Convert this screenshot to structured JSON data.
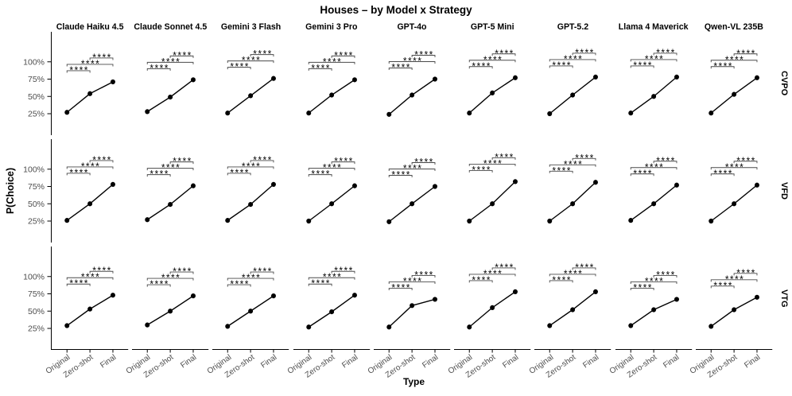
{
  "chart_data": {
    "type": "line",
    "title": "Houses – by Model x Strategy",
    "xlabel": "Type",
    "ylabel": "P(Choice)",
    "x_categories": [
      "Original",
      "Zero-shot",
      "Final"
    ],
    "y_tick_labels": [
      "25%",
      "50%",
      "75%",
      "100%"
    ],
    "y_tick_values": [
      25,
      50,
      75,
      100
    ],
    "ylim": [
      0,
      140
    ],
    "grid": "off",
    "legend": "none",
    "facet_columns": [
      "Claude Haiku 4.5",
      "Claude Sonnet 4.5",
      "Gemini 3 Flash",
      "Gemini 3 Pro",
      "GPT-4o",
      "GPT-5 Mini",
      "GPT-5.2",
      "Llama 4 Maverick",
      "Qwen-VL 235B"
    ],
    "facet_rows": [
      "CVPO",
      "VFD",
      "VTG"
    ],
    "significance": {
      "label": "****",
      "pairs": [
        [
          0,
          1
        ],
        [
          0,
          2
        ],
        [
          1,
          2
        ]
      ]
    },
    "series": [
      {
        "strategy": "CVPO",
        "values": [
          [
            27,
            54,
            71
          ],
          [
            28,
            49,
            74
          ],
          [
            26,
            51,
            76
          ],
          [
            26,
            52,
            74
          ],
          [
            24,
            52,
            75
          ],
          [
            26,
            55,
            77
          ],
          [
            25,
            52,
            78
          ],
          [
            26,
            50,
            78
          ],
          [
            26,
            53,
            77
          ]
        ]
      },
      {
        "strategy": "VFD",
        "values": [
          [
            26,
            50,
            78
          ],
          [
            27,
            49,
            76
          ],
          [
            26,
            49,
            78
          ],
          [
            25,
            50,
            76
          ],
          [
            24,
            50,
            75
          ],
          [
            25,
            50,
            82
          ],
          [
            25,
            50,
            81
          ],
          [
            26,
            50,
            77
          ],
          [
            25,
            50,
            77
          ]
        ]
      },
      {
        "strategy": "VTG",
        "values": [
          [
            29,
            53,
            73
          ],
          [
            30,
            50,
            72
          ],
          [
            28,
            50,
            72
          ],
          [
            27,
            49,
            73
          ],
          [
            27,
            58,
            67
          ],
          [
            27,
            55,
            78
          ],
          [
            29,
            52,
            78
          ],
          [
            29,
            52,
            67
          ],
          [
            28,
            52,
            70
          ]
        ]
      }
    ],
    "colors": {
      "line": "#000000",
      "point": "#000000",
      "axis": "#000000",
      "tick_label": "#4d4d4d",
      "significance": "#000000",
      "background": "#ffffff"
    }
  }
}
